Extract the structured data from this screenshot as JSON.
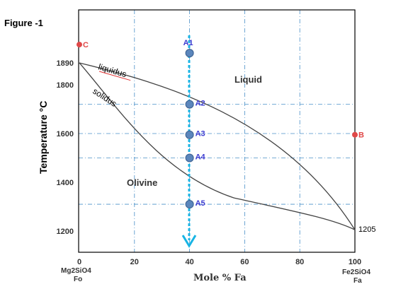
{
  "figure_label": "Figure -1",
  "y_axis_title": "Temperature °C",
  "x_axis_title": "Mole % Fa",
  "x_ticks": [
    0,
    20,
    40,
    60,
    80,
    100
  ],
  "y_ticks": [
    1200,
    1400,
    1600,
    1800,
    1890
  ],
  "x_end_labels": {
    "left_formula": "Mg2SiO4",
    "left_name": "Fo",
    "right_formula": "Fe2SiO4",
    "right_name": "Fa"
  },
  "right_temp_label": "1205",
  "curve_labels": {
    "liquidus": "liquidus",
    "solidus": "solidus"
  },
  "field_labels": {
    "liquid": "Liquid",
    "olivine": "Olivine"
  },
  "points": [
    {
      "id": "A1",
      "x": 40,
      "t": 1930
    },
    {
      "id": "A2",
      "x": 40,
      "t": 1720
    },
    {
      "id": "A3",
      "x": 40,
      "t": 1595
    },
    {
      "id": "A4",
      "x": 40,
      "t": 1500
    },
    {
      "id": "A5",
      "x": 40,
      "t": 1310
    }
  ],
  "markers": [
    {
      "id": "C",
      "x": 0,
      "t": 1965
    },
    {
      "id": "B",
      "x": 100,
      "t": 1595
    }
  ],
  "colors": {
    "curve": "#444444",
    "grid": "#4a90c8",
    "arrow": "#18b4e4",
    "point_fill": "#5b86bc",
    "point_stroke": "#3a5f8f",
    "point_label": "#3a3ad0",
    "marker": "#e04848",
    "underline": "#e03030"
  }
}
